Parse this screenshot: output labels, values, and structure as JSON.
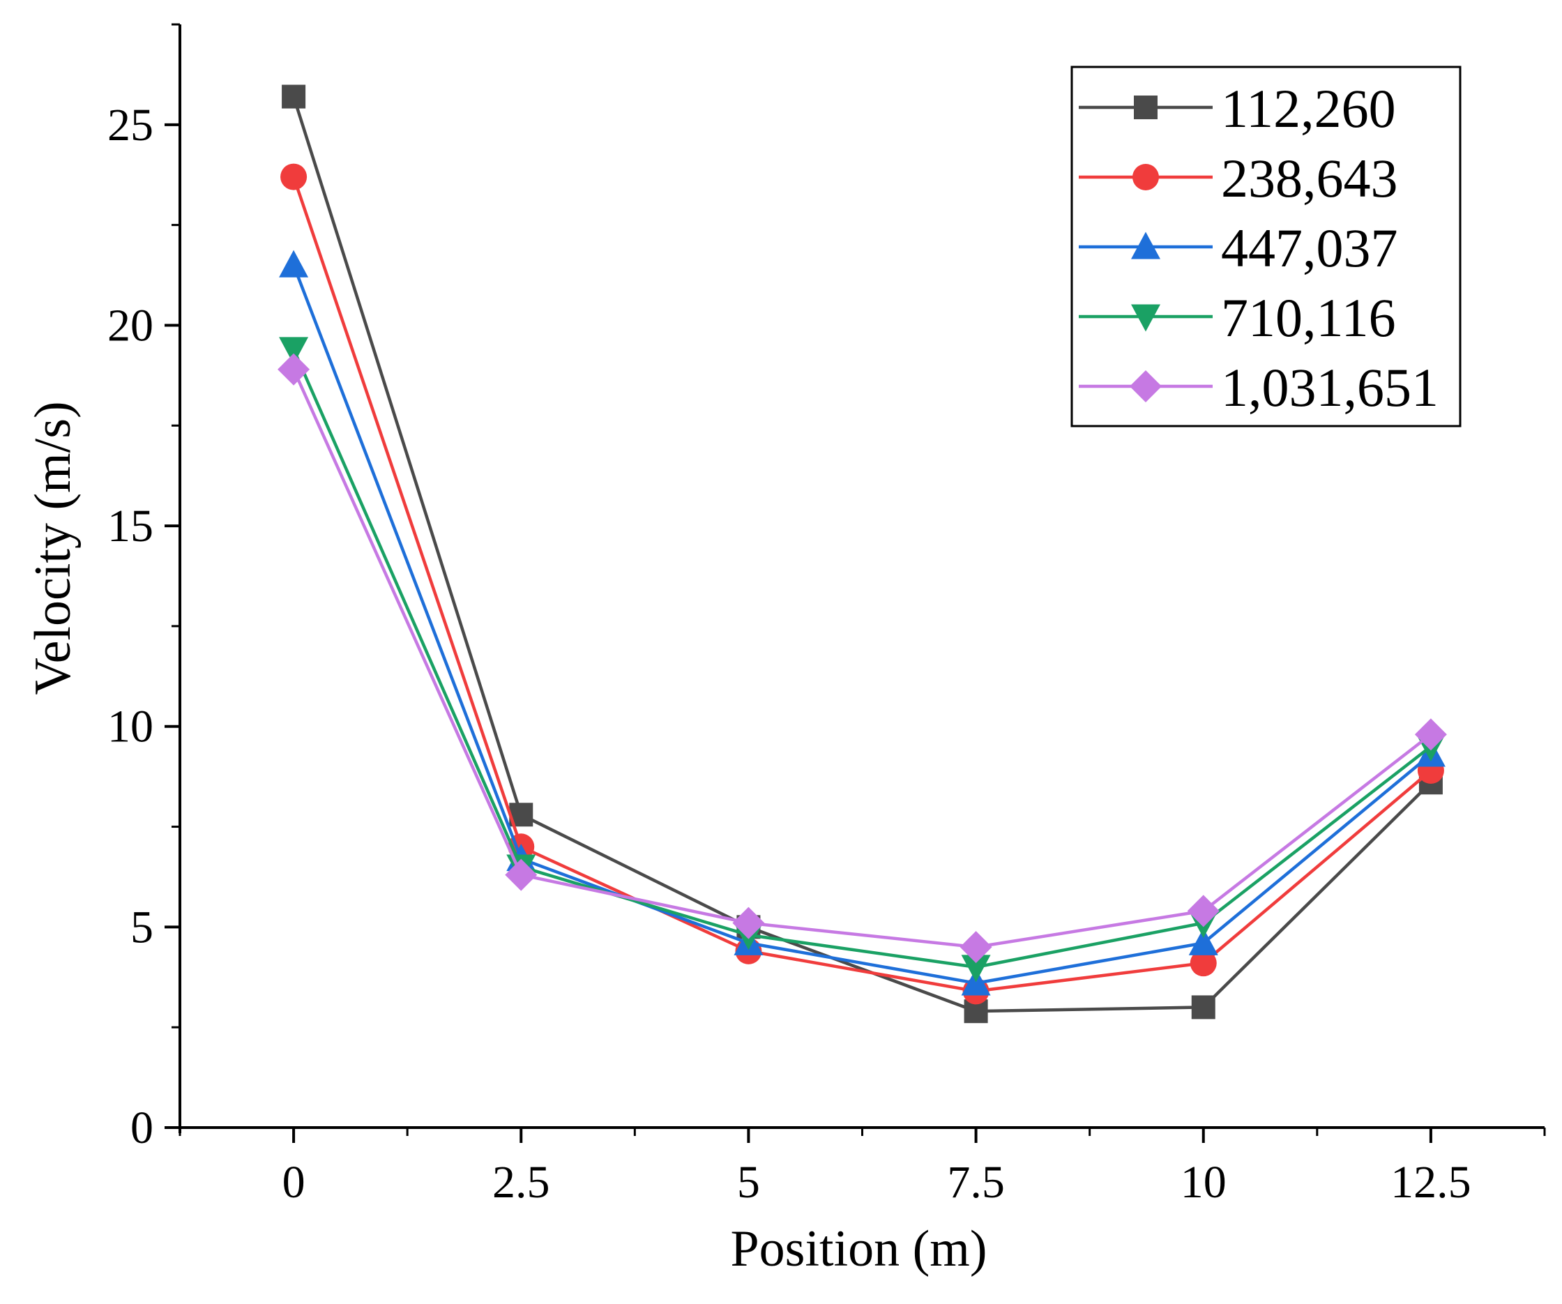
{
  "chart_data": {
    "type": "line",
    "title": "",
    "xlabel": "Position (m)",
    "ylabel": "Velocity (m/s)",
    "x": [
      0,
      2.5,
      5,
      7.5,
      10,
      12.5
    ],
    "x_tick_labels": [
      "0",
      "2.5",
      "5",
      "7.5",
      "10",
      "12.5"
    ],
    "y_tick_labels": [
      "0",
      "5",
      "10",
      "15",
      "20",
      "25"
    ],
    "xlim": [
      -1.25,
      13.75
    ],
    "ylim": [
      0,
      27.5
    ],
    "grid": false,
    "legend_position": "top-right",
    "series": [
      {
        "name": "112,260",
        "color": "#4a4a4a",
        "marker": "square",
        "values": [
          25.7,
          7.8,
          5.0,
          2.9,
          3.0,
          8.6
        ]
      },
      {
        "name": "238,643",
        "color": "#f03c3c",
        "marker": "circle",
        "values": [
          23.7,
          7.0,
          4.4,
          3.4,
          4.1,
          8.9
        ]
      },
      {
        "name": "447,037",
        "color": "#1e6fd9",
        "marker": "triangle-up",
        "values": [
          21.5,
          6.7,
          4.6,
          3.6,
          4.6,
          9.3
        ]
      },
      {
        "name": "710,116",
        "color": "#1aa164",
        "marker": "triangle-down",
        "values": [
          19.4,
          6.5,
          4.8,
          4.0,
          5.1,
          9.5
        ]
      },
      {
        "name": "1,031,651",
        "color": "#c679e3",
        "marker": "diamond",
        "values": [
          18.9,
          6.3,
          5.1,
          4.5,
          5.4,
          9.8
        ]
      }
    ]
  }
}
